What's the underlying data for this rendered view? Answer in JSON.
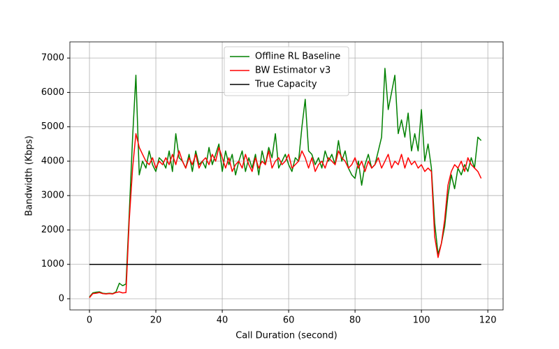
{
  "chart_data": {
    "type": "line",
    "xlabel": "Call Duration (second)",
    "ylabel": "Bandwidth (Kbps)",
    "x": [
      0,
      1,
      2,
      3,
      4,
      5,
      6,
      7,
      8,
      9,
      10,
      11,
      12,
      13,
      14,
      15,
      16,
      17,
      18,
      19,
      20,
      21,
      22,
      23,
      24,
      25,
      26,
      27,
      28,
      29,
      30,
      31,
      32,
      33,
      34,
      35,
      36,
      37,
      38,
      39,
      40,
      41,
      42,
      43,
      44,
      45,
      46,
      47,
      48,
      49,
      50,
      51,
      52,
      53,
      54,
      55,
      56,
      57,
      58,
      59,
      60,
      61,
      62,
      63,
      64,
      65,
      66,
      67,
      68,
      69,
      70,
      71,
      72,
      73,
      74,
      75,
      76,
      77,
      78,
      79,
      80,
      81,
      82,
      83,
      84,
      85,
      86,
      87,
      88,
      89,
      90,
      91,
      92,
      93,
      94,
      95,
      96,
      97,
      98,
      99,
      100,
      101,
      102,
      103,
      104,
      105,
      106,
      107,
      108,
      109,
      110,
      111,
      112,
      113,
      114,
      115,
      116,
      117,
      118
    ],
    "series": [
      {
        "name": "Offline RL Baseline",
        "color": "#008000",
        "values": [
          50,
          170,
          190,
          200,
          160,
          150,
          160,
          150,
          200,
          450,
          380,
          430,
          2500,
          4700,
          6500,
          3600,
          4000,
          3800,
          4300,
          3900,
          3700,
          4100,
          4000,
          3800,
          4300,
          3700,
          4800,
          4100,
          4000,
          3800,
          4200,
          3700,
          4300,
          3900,
          4000,
          3800,
          4400,
          3900,
          4200,
          4500,
          3700,
          4300,
          3900,
          4200,
          3600,
          4000,
          4300,
          3700,
          4100,
          3800,
          4200,
          3600,
          4300,
          3900,
          4400,
          4100,
          4800,
          3800,
          4000,
          4200,
          3900,
          3700,
          4100,
          4000,
          5000,
          5800,
          4300,
          4200,
          3900,
          4100,
          3800,
          4300,
          4000,
          4200,
          3900,
          4600,
          4000,
          4300,
          3800,
          3600,
          3500,
          4000,
          3300,
          3900,
          4200,
          3800,
          3900,
          4300,
          4700,
          6700,
          5500,
          6000,
          6500,
          4800,
          5200,
          4700,
          5400,
          4300,
          4800,
          4300,
          5500,
          4000,
          4500,
          3800,
          2200,
          1300,
          1600,
          2100,
          3000,
          3600,
          3200,
          3800,
          3600,
          3900,
          3700,
          4100,
          3800,
          4700,
          4600
        ]
      },
      {
        "name": "BW Estimator v3",
        "color": "#ff0000",
        "values": [
          30,
          150,
          160,
          180,
          150,
          140,
          150,
          140,
          180,
          200,
          170,
          180,
          2300,
          3800,
          4800,
          4400,
          4200,
          4000,
          3900,
          4100,
          3800,
          4000,
          3900,
          4100,
          3900,
          4200,
          3900,
          4300,
          4000,
          3800,
          4100,
          3900,
          4200,
          3800,
          4000,
          4100,
          3900,
          4200,
          4000,
          4400,
          4100,
          3800,
          4100,
          3700,
          3900,
          4000,
          3800,
          4200,
          3900,
          3700,
          4100,
          3800,
          4000,
          3900,
          4300,
          3800,
          4000,
          4100,
          3900,
          4000,
          4200,
          3800,
          3900,
          4000,
          4300,
          4100,
          3800,
          4100,
          3700,
          3900,
          4000,
          3800,
          4100,
          4000,
          3900,
          4300,
          4100,
          4000,
          3800,
          3900,
          4100,
          3800,
          4000,
          3700,
          4000,
          3800,
          3900,
          4100,
          3800,
          4000,
          4200,
          3800,
          4000,
          3900,
          4200,
          3800,
          4100,
          3900,
          4000,
          3800,
          3900,
          3700,
          3800,
          3700,
          1800,
          1200,
          1600,
          2300,
          3300,
          3700,
          3900,
          3800,
          4000,
          3700,
          4100,
          3900,
          3800,
          3700,
          3500
        ]
      },
      {
        "name": "True Capacity",
        "color": "#000000",
        "values": [
          1000,
          1000,
          1000,
          1000,
          1000,
          1000,
          1000,
          1000,
          1000,
          1000,
          1000,
          1000,
          1000,
          1000,
          1000,
          1000,
          1000,
          1000,
          1000,
          1000,
          1000,
          1000,
          1000,
          1000,
          1000,
          1000,
          1000,
          1000,
          1000,
          1000,
          1000,
          1000,
          1000,
          1000,
          1000,
          1000,
          1000,
          1000,
          1000,
          1000,
          1000,
          1000,
          1000,
          1000,
          1000,
          1000,
          1000,
          1000,
          1000,
          1000,
          1000,
          1000,
          1000,
          1000,
          1000,
          1000,
          1000,
          1000,
          1000,
          1000,
          1000,
          1000,
          1000,
          1000,
          1000,
          1000,
          1000,
          1000,
          1000,
          1000,
          1000,
          1000,
          1000,
          1000,
          1000,
          1000,
          1000,
          1000,
          1000,
          1000,
          1000,
          1000,
          1000,
          1000,
          1000,
          1000,
          1000,
          1000,
          1000,
          1000,
          1000,
          1000,
          1000,
          1000,
          1000,
          1000,
          1000,
          1000,
          1000,
          1000,
          1000,
          1000,
          1000,
          1000,
          1000,
          1000,
          1000,
          1000,
          1000,
          1000,
          1000,
          1000,
          1000,
          1000,
          1000,
          1000,
          1000,
          1000,
          1000
        ]
      }
    ],
    "xlim": [
      -5.9,
      124.6
    ],
    "ylim": [
      -325,
      7470
    ],
    "xticks": [
      0,
      20,
      40,
      60,
      80,
      100,
      120
    ],
    "yticks": [
      0,
      1000,
      2000,
      3000,
      4000,
      5000,
      6000,
      7000
    ],
    "grid": true,
    "legend_loc": "upper center"
  }
}
